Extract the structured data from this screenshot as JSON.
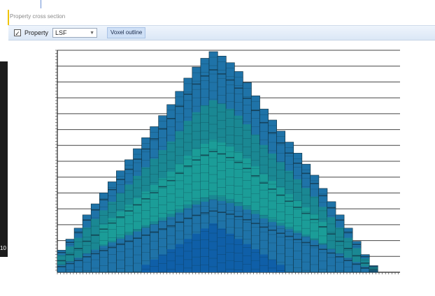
{
  "panel": {
    "title": "Property cross section"
  },
  "toolbar": {
    "property_checked": true,
    "property_label": "Property",
    "property_value": "LSF",
    "voxel_label": "Voxel outline"
  },
  "side": {
    "number": "10"
  },
  "chart_data": {
    "type": "heatmap",
    "description_shape": "triangular voxel cross section",
    "grid_rows": 14,
    "colors": {
      "deep_blue": "#0f5fa8",
      "blue": "#1f73a8",
      "teal": "#1a8c8f",
      "cyan": "#1ba39a",
      "dark": "#123040"
    },
    "columns": [
      {
        "top": 0.1
      },
      {
        "top": 0.15
      },
      {
        "top": 0.2
      },
      {
        "top": 0.26
      },
      {
        "top": 0.31
      },
      {
        "top": 0.36
      },
      {
        "top": 0.41
      },
      {
        "top": 0.46
      },
      {
        "top": 0.51
      },
      {
        "top": 0.56
      },
      {
        "top": 0.61
      },
      {
        "top": 0.66
      },
      {
        "top": 0.71
      },
      {
        "top": 0.76
      },
      {
        "top": 0.82
      },
      {
        "top": 0.88
      },
      {
        "top": 0.93
      },
      {
        "top": 0.97
      },
      {
        "top": 1.0
      },
      {
        "top": 0.98
      },
      {
        "top": 0.95
      },
      {
        "top": 0.91
      },
      {
        "top": 0.86
      },
      {
        "top": 0.8
      },
      {
        "top": 0.74
      },
      {
        "top": 0.69
      },
      {
        "top": 0.64
      },
      {
        "top": 0.59
      },
      {
        "top": 0.54
      },
      {
        "top": 0.49
      },
      {
        "top": 0.44
      },
      {
        "top": 0.38
      },
      {
        "top": 0.32
      },
      {
        "top": 0.26
      },
      {
        "top": 0.2
      },
      {
        "top": 0.14
      },
      {
        "top": 0.08
      },
      {
        "top": 0.03
      }
    ]
  }
}
